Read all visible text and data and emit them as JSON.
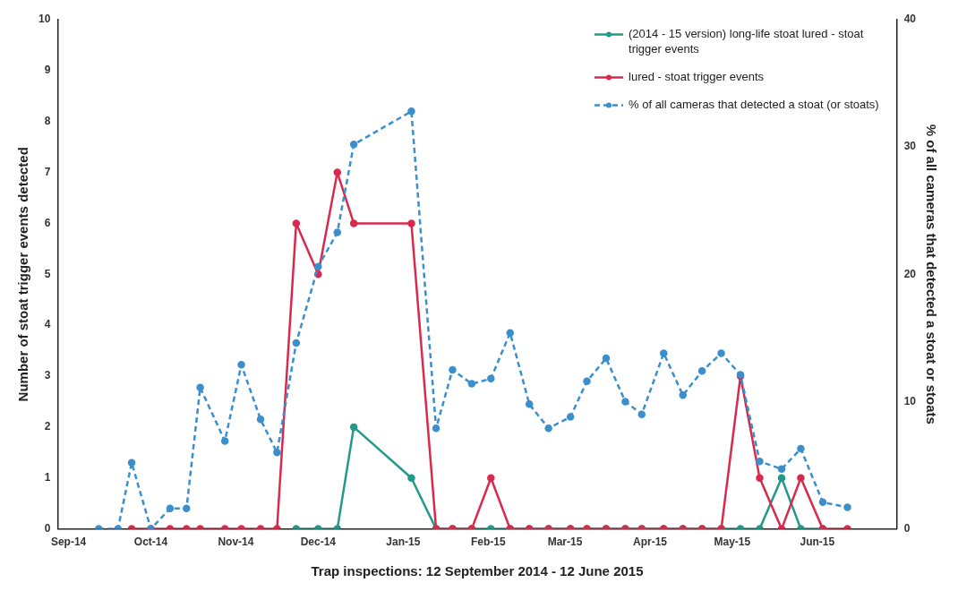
{
  "chart_data": {
    "type": "line",
    "xlabel": "Trap inspections: 12 September 2014 - 12 June 2015",
    "ylabel": "Number of stoat trigger events detected",
    "y2label": "% of all cameras that detected a stoat or stoats",
    "x": [
      "2014-09-12",
      "2014-09-19",
      "2014-09-24",
      "2014-10-01",
      "2014-10-08",
      "2014-10-14",
      "2014-10-19",
      "2014-10-28",
      "2014-11-03",
      "2014-11-10",
      "2014-11-16",
      "2014-11-23",
      "2014-12-01",
      "2014-12-08",
      "2014-12-14",
      "2015-01-04",
      "2015-01-13",
      "2015-01-19",
      "2015-01-26",
      "2015-02-02",
      "2015-02-09",
      "2015-02-16",
      "2015-02-23",
      "2015-03-03",
      "2015-03-09",
      "2015-03-16",
      "2015-03-23",
      "2015-03-29",
      "2015-04-06",
      "2015-04-13",
      "2015-04-20",
      "2015-04-27",
      "2015-05-04",
      "2015-05-11",
      "2015-05-19",
      "2015-05-26",
      "2015-06-03",
      "2015-06-12"
    ],
    "series": [
      {
        "name": "(2014 - 15 version) long-life stoat lured - stoat trigger events",
        "color": "#23998a",
        "values": [
          null,
          null,
          null,
          null,
          null,
          null,
          null,
          null,
          null,
          null,
          null,
          0,
          0,
          0,
          2,
          1,
          0,
          0,
          0,
          0,
          0,
          0,
          0,
          0,
          0,
          0,
          0,
          0,
          0,
          0,
          0,
          0,
          0,
          0,
          1,
          0,
          0,
          null
        ]
      },
      {
        "name": "lured - stoat trigger events",
        "color": "#d92a4e",
        "values": [
          null,
          null,
          0,
          0,
          0,
          0,
          0,
          0,
          0,
          0,
          0,
          6,
          5,
          7,
          6,
          6,
          0,
          0,
          0,
          1,
          0,
          0,
          0,
          0,
          0,
          0,
          0,
          0,
          0,
          0,
          0,
          0,
          3,
          1,
          0,
          1,
          0,
          0
        ]
      },
      {
        "name": "% of all cameras that detected a stoat (or stoats)",
        "color": "#3a8fcc",
        "axis": "y2",
        "line_style": "dashed",
        "values": [
          0,
          0,
          5.2,
          0,
          1.6,
          1.6,
          11.1,
          6.9,
          12.9,
          8.6,
          6.0,
          14.6,
          20.6,
          23.3,
          30.2,
          32.8,
          7.9,
          12.5,
          11.4,
          11.8,
          15.4,
          9.8,
          7.9,
          8.8,
          11.6,
          13.4,
          10.0,
          9.0,
          13.8,
          10.5,
          12.4,
          13.8,
          12.1,
          5.3,
          4.7,
          6.3,
          2.1,
          1.7
        ]
      }
    ],
    "xlim": [
      "2014-08-28",
      "2015-06-30"
    ],
    "xticks": [
      {
        "value": "2014-09-01",
        "label": "Sep-14"
      },
      {
        "value": "2014-10-01",
        "label": "Oct-14"
      },
      {
        "value": "2014-11-01",
        "label": "Nov-14"
      },
      {
        "value": "2014-12-01",
        "label": "Dec-14"
      },
      {
        "value": "2015-01-01",
        "label": "Jan-15"
      },
      {
        "value": "2015-02-01",
        "label": "Feb-15"
      },
      {
        "value": "2015-03-01",
        "label": "Mar-15"
      },
      {
        "value": "2015-04-01",
        "label": "Apr-15"
      },
      {
        "value": "2015-05-01",
        "label": "May-15"
      },
      {
        "value": "2015-06-01",
        "label": "Jun-15"
      }
    ],
    "ylim": [
      0,
      10
    ],
    "yticks": [
      0,
      1,
      2,
      3,
      4,
      5,
      6,
      7,
      8,
      9,
      10
    ],
    "y2lim": [
      0,
      40
    ],
    "y2ticks": [
      0,
      10,
      20,
      30,
      40
    ],
    "marker": "circle",
    "legend": "top right",
    "grid": false
  }
}
